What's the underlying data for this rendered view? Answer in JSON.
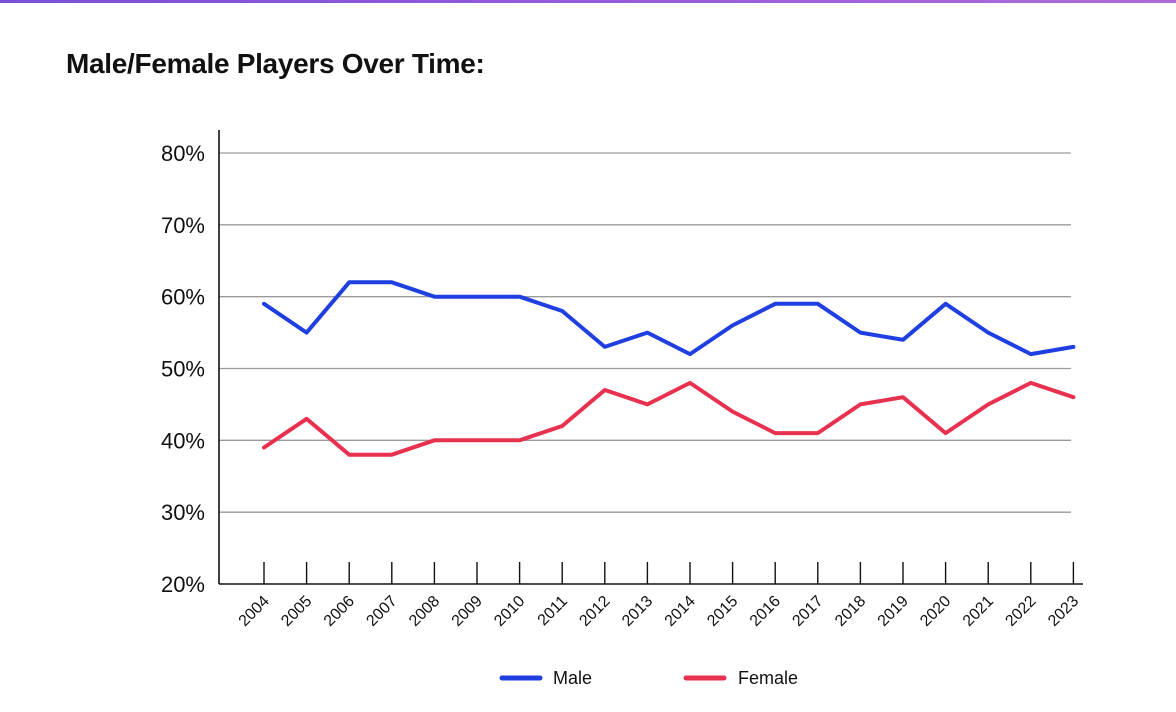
{
  "page": {
    "title": "Male/Female Players Over Time:",
    "accent_color": "#8a55d8"
  },
  "chart_data": {
    "type": "line",
    "title": "Male/Female Players Over Time:",
    "xlabel": "",
    "ylabel": "",
    "x": [
      "2004",
      "2005",
      "2006",
      "2007",
      "2008",
      "2009",
      "2010",
      "2011",
      "2012",
      "2013",
      "2014",
      "2015",
      "2016",
      "2017",
      "2018",
      "2019",
      "2020",
      "2021",
      "2022",
      "2023"
    ],
    "ylim": [
      20,
      80
    ],
    "yticks": [
      20,
      30,
      40,
      50,
      60,
      70,
      80
    ],
    "ytick_labels": [
      "20%",
      "30%",
      "40%",
      "50%",
      "60%",
      "70%",
      "80%"
    ],
    "grid": true,
    "legend_position": "bottom-center",
    "series": [
      {
        "name": "Male",
        "color": "#1f3fe0",
        "values": [
          59,
          55,
          62,
          62,
          60,
          60,
          60,
          58,
          53,
          55,
          52,
          56,
          59,
          59,
          55,
          54,
          59,
          55,
          52,
          53
        ]
      },
      {
        "name": "Female",
        "color": "#e8304f",
        "values": [
          39,
          43,
          38,
          38,
          40,
          40,
          40,
          42,
          47,
          45,
          48,
          44,
          41,
          41,
          45,
          46,
          41,
          45,
          48,
          46
        ]
      }
    ]
  }
}
